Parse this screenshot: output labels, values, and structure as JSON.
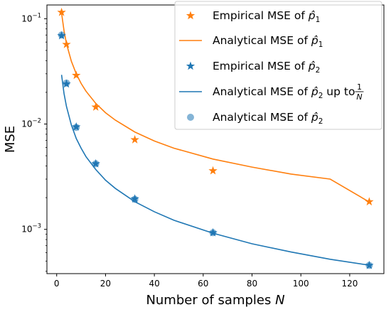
{
  "chart_data": {
    "type": "line",
    "xlabel_text": "Number of samples ",
    "xlabel_var": "N",
    "ylabel": "MSE",
    "xlim": [
      -4,
      134
    ],
    "ylim": [
      0.00038,
      0.135
    ],
    "yscale": "log",
    "xticks": [
      0,
      20,
      40,
      60,
      80,
      100,
      120
    ],
    "xtick_labels": [
      "0",
      "20",
      "40",
      "60",
      "80",
      "100",
      "120"
    ],
    "yticks": [
      0.001,
      0.01,
      0.1
    ],
    "ytick_labels": [
      {
        "base": "10",
        "exp": "−3"
      },
      {
        "base": "10",
        "exp": "−2"
      },
      {
        "base": "10",
        "exp": "−1"
      }
    ],
    "grid": false,
    "legend_placement": "top-right",
    "colors": {
      "orange": "#ff7f0e",
      "blue": "#1f77b4"
    },
    "series": [
      {
        "name": "Empirical MSE of p̂1",
        "label_prefix": "Empirical MSE of ",
        "label_var": "p̂",
        "label_sub": "1",
        "kind": "scatter",
        "marker": "star",
        "color": "#ff7f0e",
        "x": [
          2,
          4,
          8,
          16,
          32,
          64,
          128
        ],
        "y": [
          0.115,
          0.057,
          0.029,
          0.0145,
          0.0071,
          0.0036,
          0.00183
        ]
      },
      {
        "name": "Analytical MSE of p̂1",
        "label_prefix": "Analytical MSE of ",
        "label_var": "p̂",
        "label_sub": "1",
        "kind": "line",
        "color": "#ff7f0e",
        "x": [
          2,
          3,
          4,
          6,
          8,
          10,
          12,
          16,
          20,
          24,
          32,
          40,
          48,
          64,
          80,
          96,
          112,
          128
        ],
        "y": [
          0.113,
          0.077,
          0.058,
          0.0395,
          0.03,
          0.0243,
          0.0205,
          0.0157,
          0.0128,
          0.0109,
          0.0084,
          0.0069,
          0.0059,
          0.00465,
          0.0039,
          0.00335,
          0.003,
          0.00182
        ]
      },
      {
        "name": "Empirical MSE of p̂2",
        "label_prefix": "Empirical MSE of ",
        "label_var": "p̂",
        "label_sub": "2",
        "kind": "scatter",
        "marker": "star",
        "color": "#1f77b4",
        "x": [
          2,
          4,
          8,
          16,
          32,
          64,
          128
        ],
        "y": [
          0.069,
          0.024,
          0.0094,
          0.0042,
          0.00195,
          0.00093,
          0.000455
        ]
      },
      {
        "name": "Analytical MSE of p̂2 up to 1/N",
        "label_prefix": "Analytical MSE of ",
        "label_var": "p̂",
        "label_sub": "2",
        "label_suffix": " up to ",
        "label_frac_num": "1",
        "label_frac_den": "N",
        "kind": "line",
        "color": "#1f77b4",
        "x": [
          2,
          3,
          4,
          6,
          8,
          10,
          12,
          16,
          20,
          24,
          32,
          40,
          48,
          64,
          80,
          96,
          112,
          128
        ],
        "y": [
          0.0293,
          0.0195,
          0.0147,
          0.0098,
          0.0073,
          0.0059,
          0.0049,
          0.0037,
          0.00293,
          0.00245,
          0.00183,
          0.00147,
          0.00122,
          0.00092,
          0.00073,
          0.00061,
          0.00052,
          0.000457
        ]
      },
      {
        "name": "Analytical MSE of p̂2",
        "label_prefix": "Analytical MSE of ",
        "label_var": "p̂",
        "label_sub": "2",
        "kind": "scatter",
        "marker": "circle",
        "color": "#1f77b4",
        "x": [
          2,
          4,
          8,
          16,
          32,
          64,
          128
        ],
        "y": [
          0.07,
          0.0245,
          0.0093,
          0.0042,
          0.00193,
          0.00093,
          0.000455
        ]
      }
    ]
  }
}
